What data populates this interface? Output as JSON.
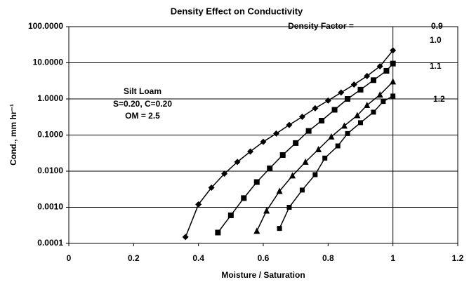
{
  "chart_data": {
    "type": "line",
    "title": "Density Effect on Conductivity",
    "xlabel": "Moisture / Saturation",
    "ylabel": "Cond., mm hr⁻¹",
    "log_y": true,
    "grid": "y",
    "xline": 1,
    "xlim": [
      0,
      1.2
    ],
    "xticks": [
      0,
      0.2,
      0.4,
      0.6,
      0.8,
      1,
      1.2
    ],
    "ylim": [
      0.0001,
      100
    ],
    "yticks": [
      {
        "value": 0.0001,
        "label": "0.0001"
      },
      {
        "value": 0.001,
        "label": "0.0010"
      },
      {
        "value": 0.01,
        "label": "0.0100"
      },
      {
        "value": 0.1,
        "label": "0.1000"
      },
      {
        "value": 1,
        "label": "1.0000"
      },
      {
        "value": 10,
        "label": "10.0000"
      },
      {
        "value": 100,
        "label": "100.0000"
      }
    ],
    "legend_title": "Density Factor =",
    "annotation": [
      "Silt Loam",
      "S=0.20, C=0.20",
      "OM = 2.5"
    ],
    "series": [
      {
        "name": "0.9",
        "color": "#000000",
        "marker": "diamond",
        "x": [
          0.36,
          0.4,
          0.44,
          0.48,
          0.52,
          0.56,
          0.6,
          0.64,
          0.68,
          0.72,
          0.76,
          0.8,
          0.84,
          0.88,
          0.92,
          0.96,
          1.0
        ],
        "values": [
          0.00015,
          0.0012,
          0.0035,
          0.0085,
          0.018,
          0.035,
          0.065,
          0.11,
          0.19,
          0.32,
          0.55,
          0.9,
          1.5,
          2.5,
          4.3,
          8,
          22
        ]
      },
      {
        "name": "1.0",
        "color": "#000000",
        "marker": "square",
        "x": [
          0.46,
          0.5,
          0.54,
          0.58,
          0.62,
          0.66,
          0.7,
          0.74,
          0.78,
          0.82,
          0.86,
          0.9,
          0.94,
          0.98,
          1.0
        ],
        "values": [
          0.0002,
          0.0006,
          0.0018,
          0.005,
          0.012,
          0.028,
          0.06,
          0.13,
          0.25,
          0.5,
          1.0,
          1.8,
          3.3,
          6,
          9.5
        ]
      },
      {
        "name": "1.1",
        "color": "#000000",
        "marker": "triangle",
        "x": [
          0.58,
          0.61,
          0.65,
          0.69,
          0.73,
          0.77,
          0.81,
          0.85,
          0.89,
          0.92,
          0.96,
          1.0
        ],
        "values": [
          0.00022,
          0.0008,
          0.0028,
          0.0075,
          0.018,
          0.04,
          0.09,
          0.18,
          0.35,
          0.67,
          1.3,
          3
        ]
      },
      {
        "name": "1.2",
        "color": "#000000",
        "marker": "square",
        "x": [
          0.65,
          0.68,
          0.72,
          0.76,
          0.79,
          0.83,
          0.86,
          0.9,
          0.94,
          0.97,
          1.0
        ],
        "values": [
          0.00026,
          0.001,
          0.003,
          0.008,
          0.023,
          0.05,
          0.11,
          0.22,
          0.43,
          0.85,
          1.2
        ]
      }
    ]
  }
}
